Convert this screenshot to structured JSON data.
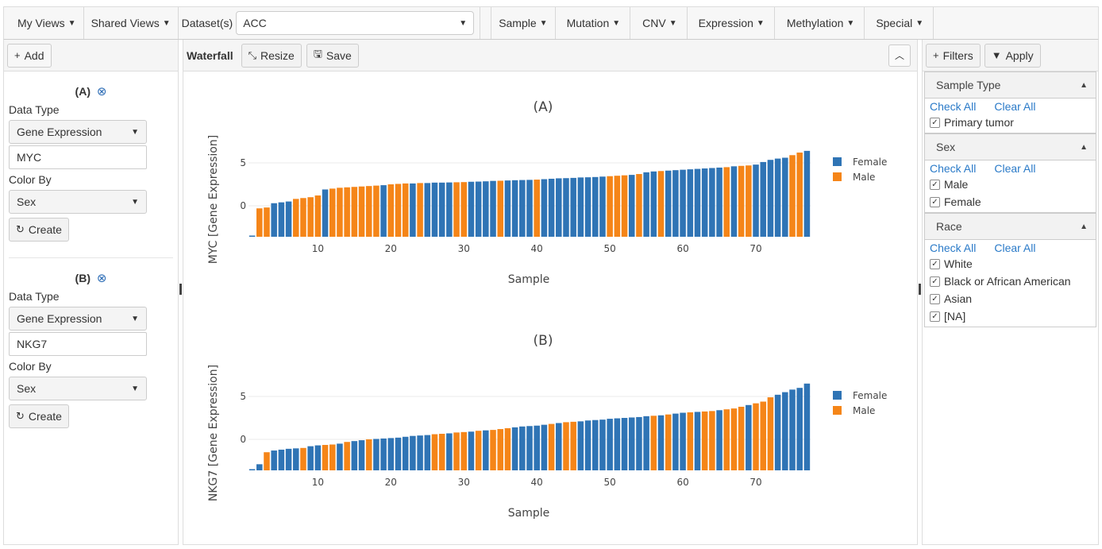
{
  "menubar": {
    "my_views": "My Views",
    "shared_views": "Shared Views",
    "dataset_label": "Dataset(s)",
    "dataset_value": "ACC",
    "menus": [
      "Sample",
      "Mutation",
      "CNV",
      "Expression",
      "Methylation",
      "Special"
    ]
  },
  "left": {
    "add_label": "Add",
    "cards": [
      {
        "title": "(A)",
        "data_type_label": "Data Type",
        "data_type_value": "Gene Expression",
        "gene_value": "MYC",
        "color_by_label": "Color By",
        "color_by_value": "Sex",
        "create_label": "Create"
      },
      {
        "title": "(B)",
        "data_type_label": "Data Type",
        "data_type_value": "Gene Expression",
        "gene_value": "NKG7",
        "color_by_label": "Color By",
        "color_by_value": "Sex",
        "create_label": "Create"
      }
    ]
  },
  "center": {
    "toolbar_label": "Waterfall",
    "resize_label": "Resize",
    "save_label": "Save"
  },
  "right": {
    "filters_label": "Filters",
    "apply_label": "Apply",
    "check_all": "Check All",
    "clear_all": "Clear All",
    "groups": [
      {
        "title": "Sample Type",
        "options": [
          "Primary tumor"
        ]
      },
      {
        "title": "Sex",
        "options": [
          "Male",
          "Female"
        ]
      },
      {
        "title": "Race",
        "options": [
          "White",
          "Black or African American",
          "Asian",
          "[NA]"
        ]
      }
    ]
  },
  "colors": {
    "female": "#2f74b5",
    "male": "#f58518"
  },
  "chart_data": [
    {
      "type": "bar",
      "title": "(A)",
      "xlabel": "Sample",
      "ylabel": "MYC [Gene Expression]",
      "xticks": [
        10,
        20,
        30,
        40,
        50,
        60,
        70
      ],
      "yticks": [
        0,
        5
      ],
      "ylim": [
        -3.8,
        6.8
      ],
      "legend_position": "right",
      "series": [
        {
          "name": "Female"
        },
        {
          "name": "Male"
        }
      ],
      "sex": [
        "F",
        "M",
        "M",
        "F",
        "F",
        "F",
        "M",
        "M",
        "M",
        "M",
        "F",
        "M",
        "M",
        "M",
        "M",
        "M",
        "M",
        "M",
        "F",
        "M",
        "M",
        "M",
        "F",
        "M",
        "F",
        "F",
        "F",
        "F",
        "M",
        "M",
        "F",
        "F",
        "F",
        "F",
        "M",
        "F",
        "F",
        "F",
        "F",
        "M",
        "F",
        "F",
        "F",
        "F",
        "F",
        "F",
        "F",
        "F",
        "F",
        "M",
        "M",
        "M",
        "F",
        "M",
        "F",
        "F",
        "M",
        "F",
        "F",
        "F",
        "F",
        "F",
        "F",
        "F",
        "F",
        "M",
        "F",
        "M",
        "M",
        "F",
        "F",
        "F",
        "F",
        "F",
        "M",
        "M",
        "F"
      ],
      "values": [
        -3.6,
        -0.3,
        -0.2,
        0.3,
        0.4,
        0.5,
        0.8,
        0.9,
        1.0,
        1.2,
        1.9,
        2.0,
        2.1,
        2.15,
        2.2,
        2.25,
        2.3,
        2.35,
        2.4,
        2.5,
        2.55,
        2.6,
        2.6,
        2.65,
        2.65,
        2.7,
        2.7,
        2.72,
        2.74,
        2.76,
        2.8,
        2.82,
        2.85,
        2.9,
        2.92,
        2.95,
        2.98,
        3.0,
        3.02,
        3.05,
        3.1,
        3.15,
        3.2,
        3.22,
        3.25,
        3.3,
        3.32,
        3.35,
        3.4,
        3.45,
        3.5,
        3.55,
        3.6,
        3.7,
        3.9,
        4.0,
        4.05,
        4.1,
        4.15,
        4.2,
        4.25,
        4.3,
        4.35,
        4.4,
        4.45,
        4.5,
        4.6,
        4.65,
        4.7,
        4.8,
        5.1,
        5.35,
        5.5,
        5.6,
        5.9,
        6.2,
        6.4
      ]
    },
    {
      "type": "bar",
      "title": "(B)",
      "xlabel": "Sample",
      "ylabel": "NKG7 [Gene Expression]",
      "xticks": [
        10,
        20,
        30,
        40,
        50,
        60,
        70
      ],
      "yticks": [
        0,
        5
      ],
      "ylim": [
        -3.8,
        6.8
      ],
      "legend_position": "right",
      "series": [
        {
          "name": "Female"
        },
        {
          "name": "Male"
        }
      ],
      "sex": [
        "F",
        "F",
        "M",
        "F",
        "F",
        "F",
        "F",
        "M",
        "F",
        "F",
        "M",
        "M",
        "F",
        "M",
        "F",
        "F",
        "M",
        "F",
        "F",
        "F",
        "F",
        "F",
        "F",
        "F",
        "F",
        "M",
        "M",
        "F",
        "M",
        "M",
        "F",
        "M",
        "F",
        "M",
        "M",
        "M",
        "F",
        "F",
        "F",
        "F",
        "F",
        "M",
        "F",
        "M",
        "M",
        "F",
        "F",
        "F",
        "F",
        "F",
        "F",
        "F",
        "F",
        "F",
        "F",
        "M",
        "F",
        "M",
        "F",
        "F",
        "M",
        "F",
        "M",
        "M",
        "F",
        "M",
        "M",
        "M",
        "F",
        "M",
        "M",
        "M",
        "F",
        "F",
        "F",
        "F",
        "F"
      ],
      "values": [
        -3.5,
        -2.9,
        -1.5,
        -1.3,
        -1.2,
        -1.1,
        -1.05,
        -1.0,
        -0.8,
        -0.7,
        -0.65,
        -0.6,
        -0.5,
        -0.3,
        -0.2,
        -0.1,
        0.0,
        0.05,
        0.1,
        0.15,
        0.2,
        0.3,
        0.4,
        0.45,
        0.5,
        0.6,
        0.65,
        0.7,
        0.8,
        0.85,
        0.9,
        1.0,
        1.05,
        1.1,
        1.2,
        1.3,
        1.4,
        1.5,
        1.55,
        1.6,
        1.7,
        1.8,
        1.9,
        2.0,
        2.05,
        2.1,
        2.2,
        2.25,
        2.3,
        2.4,
        2.45,
        2.5,
        2.55,
        2.6,
        2.7,
        2.75,
        2.8,
        2.9,
        3.0,
        3.1,
        3.15,
        3.2,
        3.25,
        3.3,
        3.4,
        3.5,
        3.6,
        3.8,
        4.0,
        4.2,
        4.4,
        4.9,
        5.2,
        5.5,
        5.8,
        6.0,
        6.5
      ]
    }
  ]
}
